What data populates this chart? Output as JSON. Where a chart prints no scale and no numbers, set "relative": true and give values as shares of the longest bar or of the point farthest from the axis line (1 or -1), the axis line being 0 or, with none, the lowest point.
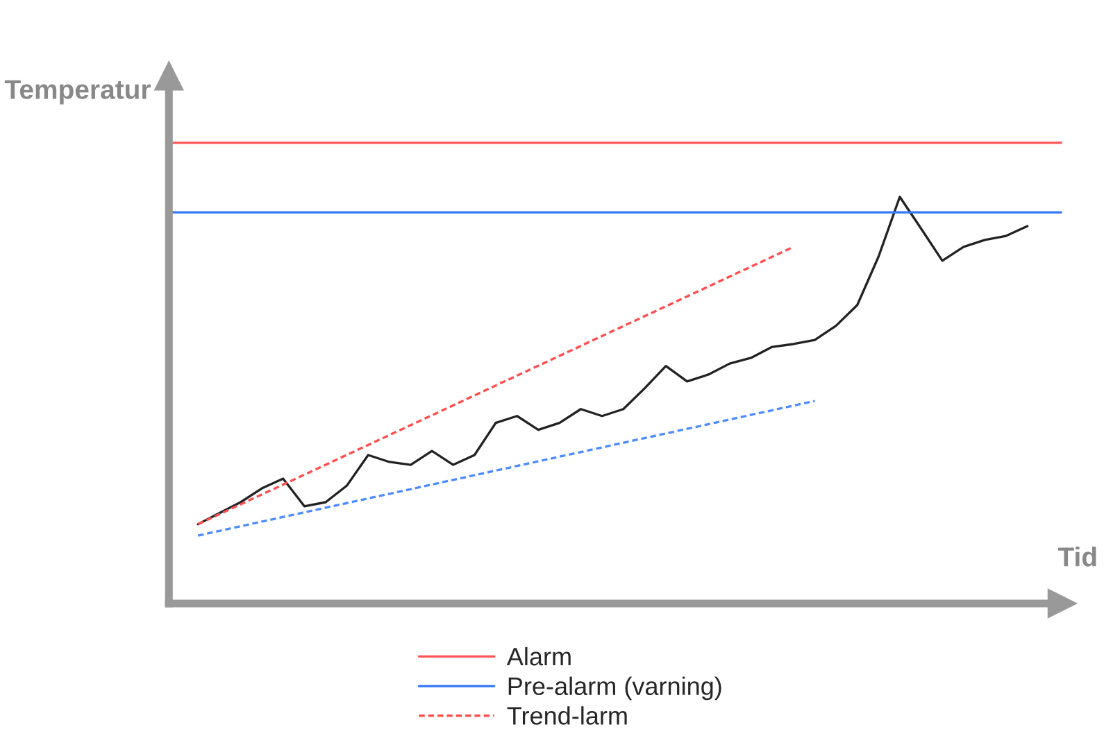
{
  "chart_data": {
    "type": "line",
    "relative": true,
    "xlabel": "Tid",
    "ylabel": "Temperatur",
    "categories": [
      null,
      null,
      null,
      null,
      null,
      null,
      null,
      null,
      null,
      null,
      null,
      null,
      null,
      null,
      null,
      null,
      null,
      null,
      null,
      null,
      null,
      null,
      null,
      null,
      null,
      null,
      null,
      null,
      null,
      null,
      null,
      null,
      null,
      null,
      null,
      null,
      null,
      null,
      null,
      null
    ],
    "series": [
      {
        "color": "#222222",
        "values": [
          0.195,
          0.222,
          0.249,
          0.283,
          0.307,
          0.239,
          0.249,
          0.29,
          0.365,
          0.348,
          0.341,
          0.375,
          0.341,
          0.365,
          0.444,
          0.461,
          0.427,
          0.444,
          0.478,
          0.461,
          0.478,
          0.529,
          0.584,
          0.546,
          0.563,
          0.59,
          0.604,
          0.631,
          0.638,
          0.648,
          0.683,
          0.734,
          0.853,
          1.0,
          0.922,
          0.843,
          0.877,
          0.894,
          0.904,
          0.928
        ]
      },
      {
        "name": "Trend-larm",
        "color": "#ff4d4d",
        "line_style": "dashed",
        "values": [
          0.195,
          null,
          null,
          null,
          null,
          null,
          null,
          null,
          null,
          null,
          null,
          null,
          null,
          null,
          null,
          null,
          null,
          null,
          null,
          null,
          null,
          null,
          null,
          null,
          null,
          null,
          null,
          null,
          0.877,
          null,
          null,
          null,
          null,
          null,
          null,
          null,
          null,
          null,
          null,
          null
        ]
      },
      {
        "color": "#4d8cff",
        "line_style": "dashed",
        "values": [
          0.167,
          null,
          null,
          null,
          null,
          null,
          null,
          null,
          null,
          null,
          null,
          null,
          null,
          null,
          null,
          null,
          null,
          null,
          null,
          null,
          null,
          null,
          null,
          null,
          null,
          null,
          null,
          null,
          null,
          0.498,
          null,
          null,
          null,
          null,
          null,
          null,
          null,
          null,
          null,
          null
        ]
      }
    ],
    "ref_lines": [
      {
        "axis": "y",
        "value": 1.133,
        "label": "Alarm",
        "color": "#ff5555"
      },
      {
        "axis": "y",
        "value": 0.962,
        "label": "Pre-alarm (varning)",
        "color": "#3377ff"
      }
    ],
    "legend": "bottom"
  }
}
